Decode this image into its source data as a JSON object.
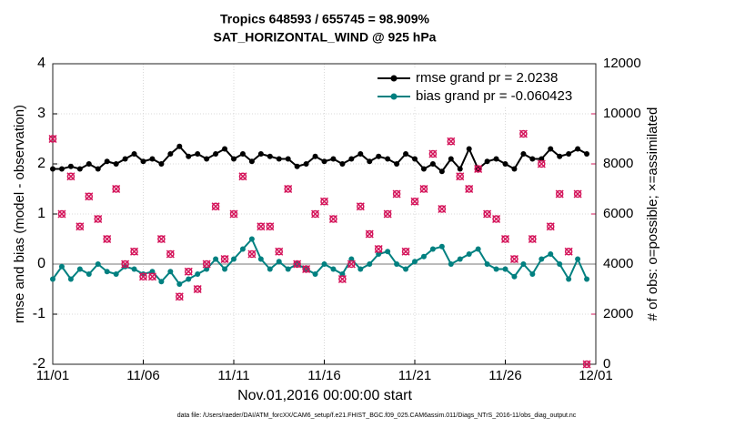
{
  "chart_data": {
    "type": "line",
    "title": "Tropics 648593 / 655745 = 98.909%",
    "subtitle": "SAT_HORIZONTAL_WIND @ 925 hPa",
    "x_label": "Nov.01,2016 00:00:00 start",
    "y_label": "rmse and bias (model - observation)",
    "y2_label": "# of obs: o=possible; ×=assimilated",
    "footnote": "data file: /Users/raeder/DAI/ATM_forcXX/CAM6_setup/f.e21.FHIST_BGC.f09_025.CAM6assim.011/Diags_NTrS_2016-11/obs_diag_output.nc",
    "x": [
      0,
      0.5,
      1,
      1.5,
      2,
      2.5,
      3,
      3.5,
      4,
      4.5,
      5,
      5.5,
      6,
      6.5,
      7,
      7.5,
      8,
      8.5,
      9,
      9.5,
      10,
      10.5,
      11,
      11.5,
      12,
      12.5,
      13,
      13.5,
      14,
      14.5,
      15,
      15.5,
      16,
      16.5,
      17,
      17.5,
      18,
      18.5,
      19,
      19.5,
      20,
      20.5,
      21,
      21.5,
      22,
      22.5,
      23,
      23.5,
      24,
      24.5,
      25,
      25.5,
      26,
      26.5,
      27,
      27.5,
      28,
      28.5,
      29,
      29.5
    ],
    "series": [
      {
        "name": "rmse grand pr = 2.0238",
        "color": "#000000",
        "marker": "o",
        "values": [
          1.9,
          1.9,
          1.95,
          1.9,
          2.0,
          1.9,
          2.05,
          2.0,
          2.1,
          2.2,
          2.05,
          2.1,
          2.0,
          2.2,
          2.35,
          2.15,
          2.2,
          2.1,
          2.2,
          2.3,
          2.1,
          2.2,
          2.05,
          2.2,
          2.15,
          2.1,
          2.1,
          1.95,
          2.0,
          2.15,
          2.05,
          2.1,
          2.0,
          2.1,
          2.2,
          2.05,
          2.15,
          2.1,
          2.0,
          2.2,
          2.1,
          1.9,
          2.0,
          1.85,
          2.1,
          1.9,
          2.3,
          1.9,
          2.05,
          2.1,
          2.0,
          1.9,
          2.2,
          2.1,
          2.1,
          2.3,
          2.15,
          2.2,
          2.3,
          2.2
        ]
      },
      {
        "name": "bias grand pr = -0.060423",
        "color": "#008080",
        "marker": "o",
        "values": [
          -0.3,
          -0.05,
          -0.3,
          -0.1,
          -0.2,
          0.0,
          -0.15,
          -0.2,
          -0.05,
          -0.1,
          -0.2,
          -0.15,
          -0.35,
          -0.15,
          -0.4,
          -0.3,
          -0.2,
          -0.1,
          0.1,
          -0.1,
          0.1,
          0.3,
          0.5,
          0.1,
          -0.1,
          0.05,
          -0.1,
          0.0,
          -0.1,
          -0.2,
          0.0,
          -0.1,
          -0.2,
          0.1,
          -0.1,
          0.0,
          0.2,
          0.25,
          0.0,
          -0.1,
          0.05,
          0.15,
          0.3,
          0.35,
          0.0,
          0.1,
          0.2,
          0.3,
          0.0,
          -0.1,
          -0.1,
          -0.25,
          0.0,
          -0.2,
          0.1,
          0.2,
          0.0,
          -0.3,
          0.1,
          -0.3
        ]
      },
      {
        "color": "#d4145a",
        "marker": "ox",
        "axis": "y2",
        "values": [
          9000,
          6000,
          7500,
          5500,
          6700,
          5800,
          5000,
          7000,
          4000,
          4500,
          3500,
          3500,
          5000,
          4400,
          2700,
          3700,
          3000,
          4000,
          6300,
          4200,
          6000,
          7500,
          4400,
          5500,
          5500,
          4500,
          7000,
          4000,
          3800,
          6000,
          6500,
          5800,
          3400,
          4000,
          6300,
          5200,
          4600,
          6000,
          6800,
          4500,
          6500,
          7000,
          8400,
          6200,
          8900,
          7500,
          7000,
          7800,
          6000,
          5800,
          5000,
          4200,
          9200,
          5000,
          8000,
          5500,
          6800,
          4500,
          6800,
          0
        ]
      }
    ],
    "xlim": [
      0,
      30
    ],
    "xticks": [
      {
        "value": 0,
        "label": "11/01"
      },
      {
        "value": 5,
        "label": "11/06"
      },
      {
        "value": 10,
        "label": "11/11"
      },
      {
        "value": 15,
        "label": "11/16"
      },
      {
        "value": 20,
        "label": "11/21"
      },
      {
        "value": 25,
        "label": "11/26"
      },
      {
        "value": 30,
        "label": "12/01"
      }
    ],
    "ylim": [
      -2,
      4
    ],
    "yticks": [
      -2,
      -1,
      0,
      1,
      2,
      3,
      4
    ],
    "y2lim": [
      0,
      12000
    ],
    "y2ticks": [
      0,
      2000,
      4000,
      6000,
      8000,
      10000,
      12000
    ],
    "grid": true,
    "legend": "northeast"
  }
}
